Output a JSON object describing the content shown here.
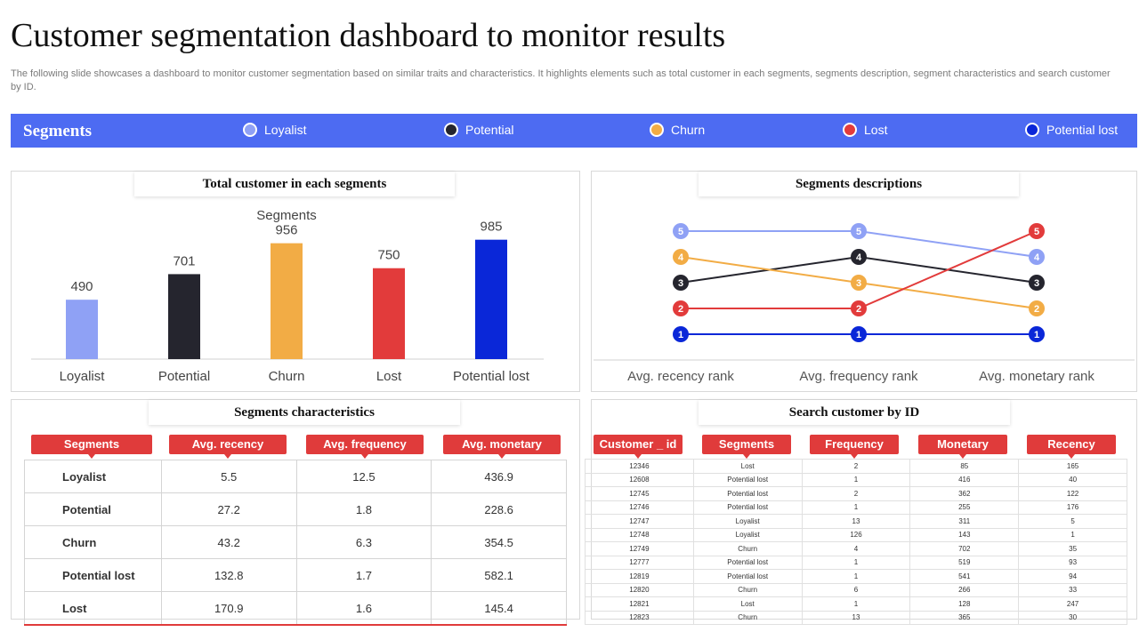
{
  "header": {
    "title": "Customer segmentation dashboard to monitor results",
    "subtitle": "The following slide showcases a dashboard to monitor customer segmentation based on similar traits and characteristics. It highlights elements such as total customer in each segments, segments description, segment characteristics and search customer by ID."
  },
  "segments_bar": {
    "label": "Segments",
    "items": [
      {
        "label": "Loyalist",
        "color": "#8fa1f5"
      },
      {
        "label": "Potential",
        "color": "#25252e"
      },
      {
        "label": "Churn",
        "color": "#f2ac45"
      },
      {
        "label": "Lost",
        "color": "#e23b3b"
      },
      {
        "label": "Potential lost",
        "color": "#0a27d8"
      }
    ]
  },
  "total_customers": {
    "heading": "Total customer in each segments",
    "chart_data": {
      "type": "bar",
      "title": "Segments",
      "categories": [
        "Loyalist",
        "Potential",
        "Churn",
        "Lost",
        "Potential lost"
      ],
      "values": [
        490,
        701,
        956,
        750,
        985
      ],
      "colors": [
        "#8fa1f5",
        "#25252e",
        "#f2ac45",
        "#e23b3b",
        "#0a27d8"
      ],
      "ylim": [
        0,
        1100
      ],
      "grid": false
    }
  },
  "descriptions": {
    "heading": "Segments descriptions",
    "chart_data": {
      "type": "line",
      "categories": [
        "Avg. recency rank",
        "Avg. frequency rank",
        "Avg. monetary rank"
      ],
      "ylim": [
        1,
        5
      ],
      "series": [
        {
          "name": "Loyalist",
          "color": "#8fa1f5",
          "values": [
            5,
            5,
            4
          ]
        },
        {
          "name": "Potential",
          "color": "#25252e",
          "values": [
            3,
            4,
            3
          ]
        },
        {
          "name": "Churn",
          "color": "#f2ac45",
          "values": [
            4,
            3,
            2
          ]
        },
        {
          "name": "Lost",
          "color": "#e23b3b",
          "values": [
            2,
            2,
            5
          ]
        },
        {
          "name": "Potential lost",
          "color": "#0a27d8",
          "values": [
            1,
            1,
            1
          ]
        }
      ]
    }
  },
  "characteristics": {
    "heading": "Segments characteristics",
    "columns": [
      "Segments",
      "Avg. recency",
      "Avg. frequency",
      "Avg. monetary"
    ],
    "rows": [
      [
        "Loyalist",
        "5.5",
        "12.5",
        "436.9"
      ],
      [
        "Potential",
        "27.2",
        "1.8",
        "228.6"
      ],
      [
        "Churn",
        "43.2",
        "6.3",
        "354.5"
      ],
      [
        "Potential lost",
        "132.8",
        "1.7",
        "582.1"
      ],
      [
        "Lost",
        "170.9",
        "1.6",
        "145.4"
      ]
    ]
  },
  "search": {
    "heading": "Search customer by ID",
    "columns": [
      "Customer _ id",
      "Segments",
      "Frequency",
      "Monetary",
      "Recency"
    ],
    "rows": [
      [
        "12346",
        "Lost",
        "2",
        "85",
        "165"
      ],
      [
        "12608",
        "Potential lost",
        "1",
        "416",
        "40"
      ],
      [
        "12745",
        "Potential lost",
        "2",
        "362",
        "122"
      ],
      [
        "12746",
        "Potential lost",
        "1",
        "255",
        "176"
      ],
      [
        "12747",
        "Loyalist",
        "13",
        "311",
        "5"
      ],
      [
        "12748",
        "Loyalist",
        "126",
        "143",
        "1"
      ],
      [
        "12749",
        "Churn",
        "4",
        "702",
        "35"
      ],
      [
        "12777",
        "Potential lost",
        "1",
        "519",
        "93"
      ],
      [
        "12819",
        "Potential lost",
        "1",
        "541",
        "94"
      ],
      [
        "12820",
        "Churn",
        "6",
        "266",
        "33"
      ],
      [
        "12821",
        "Lost",
        "1",
        "128",
        "247"
      ],
      [
        "12823",
        "Churn",
        "13",
        "365",
        "30"
      ]
    ]
  }
}
